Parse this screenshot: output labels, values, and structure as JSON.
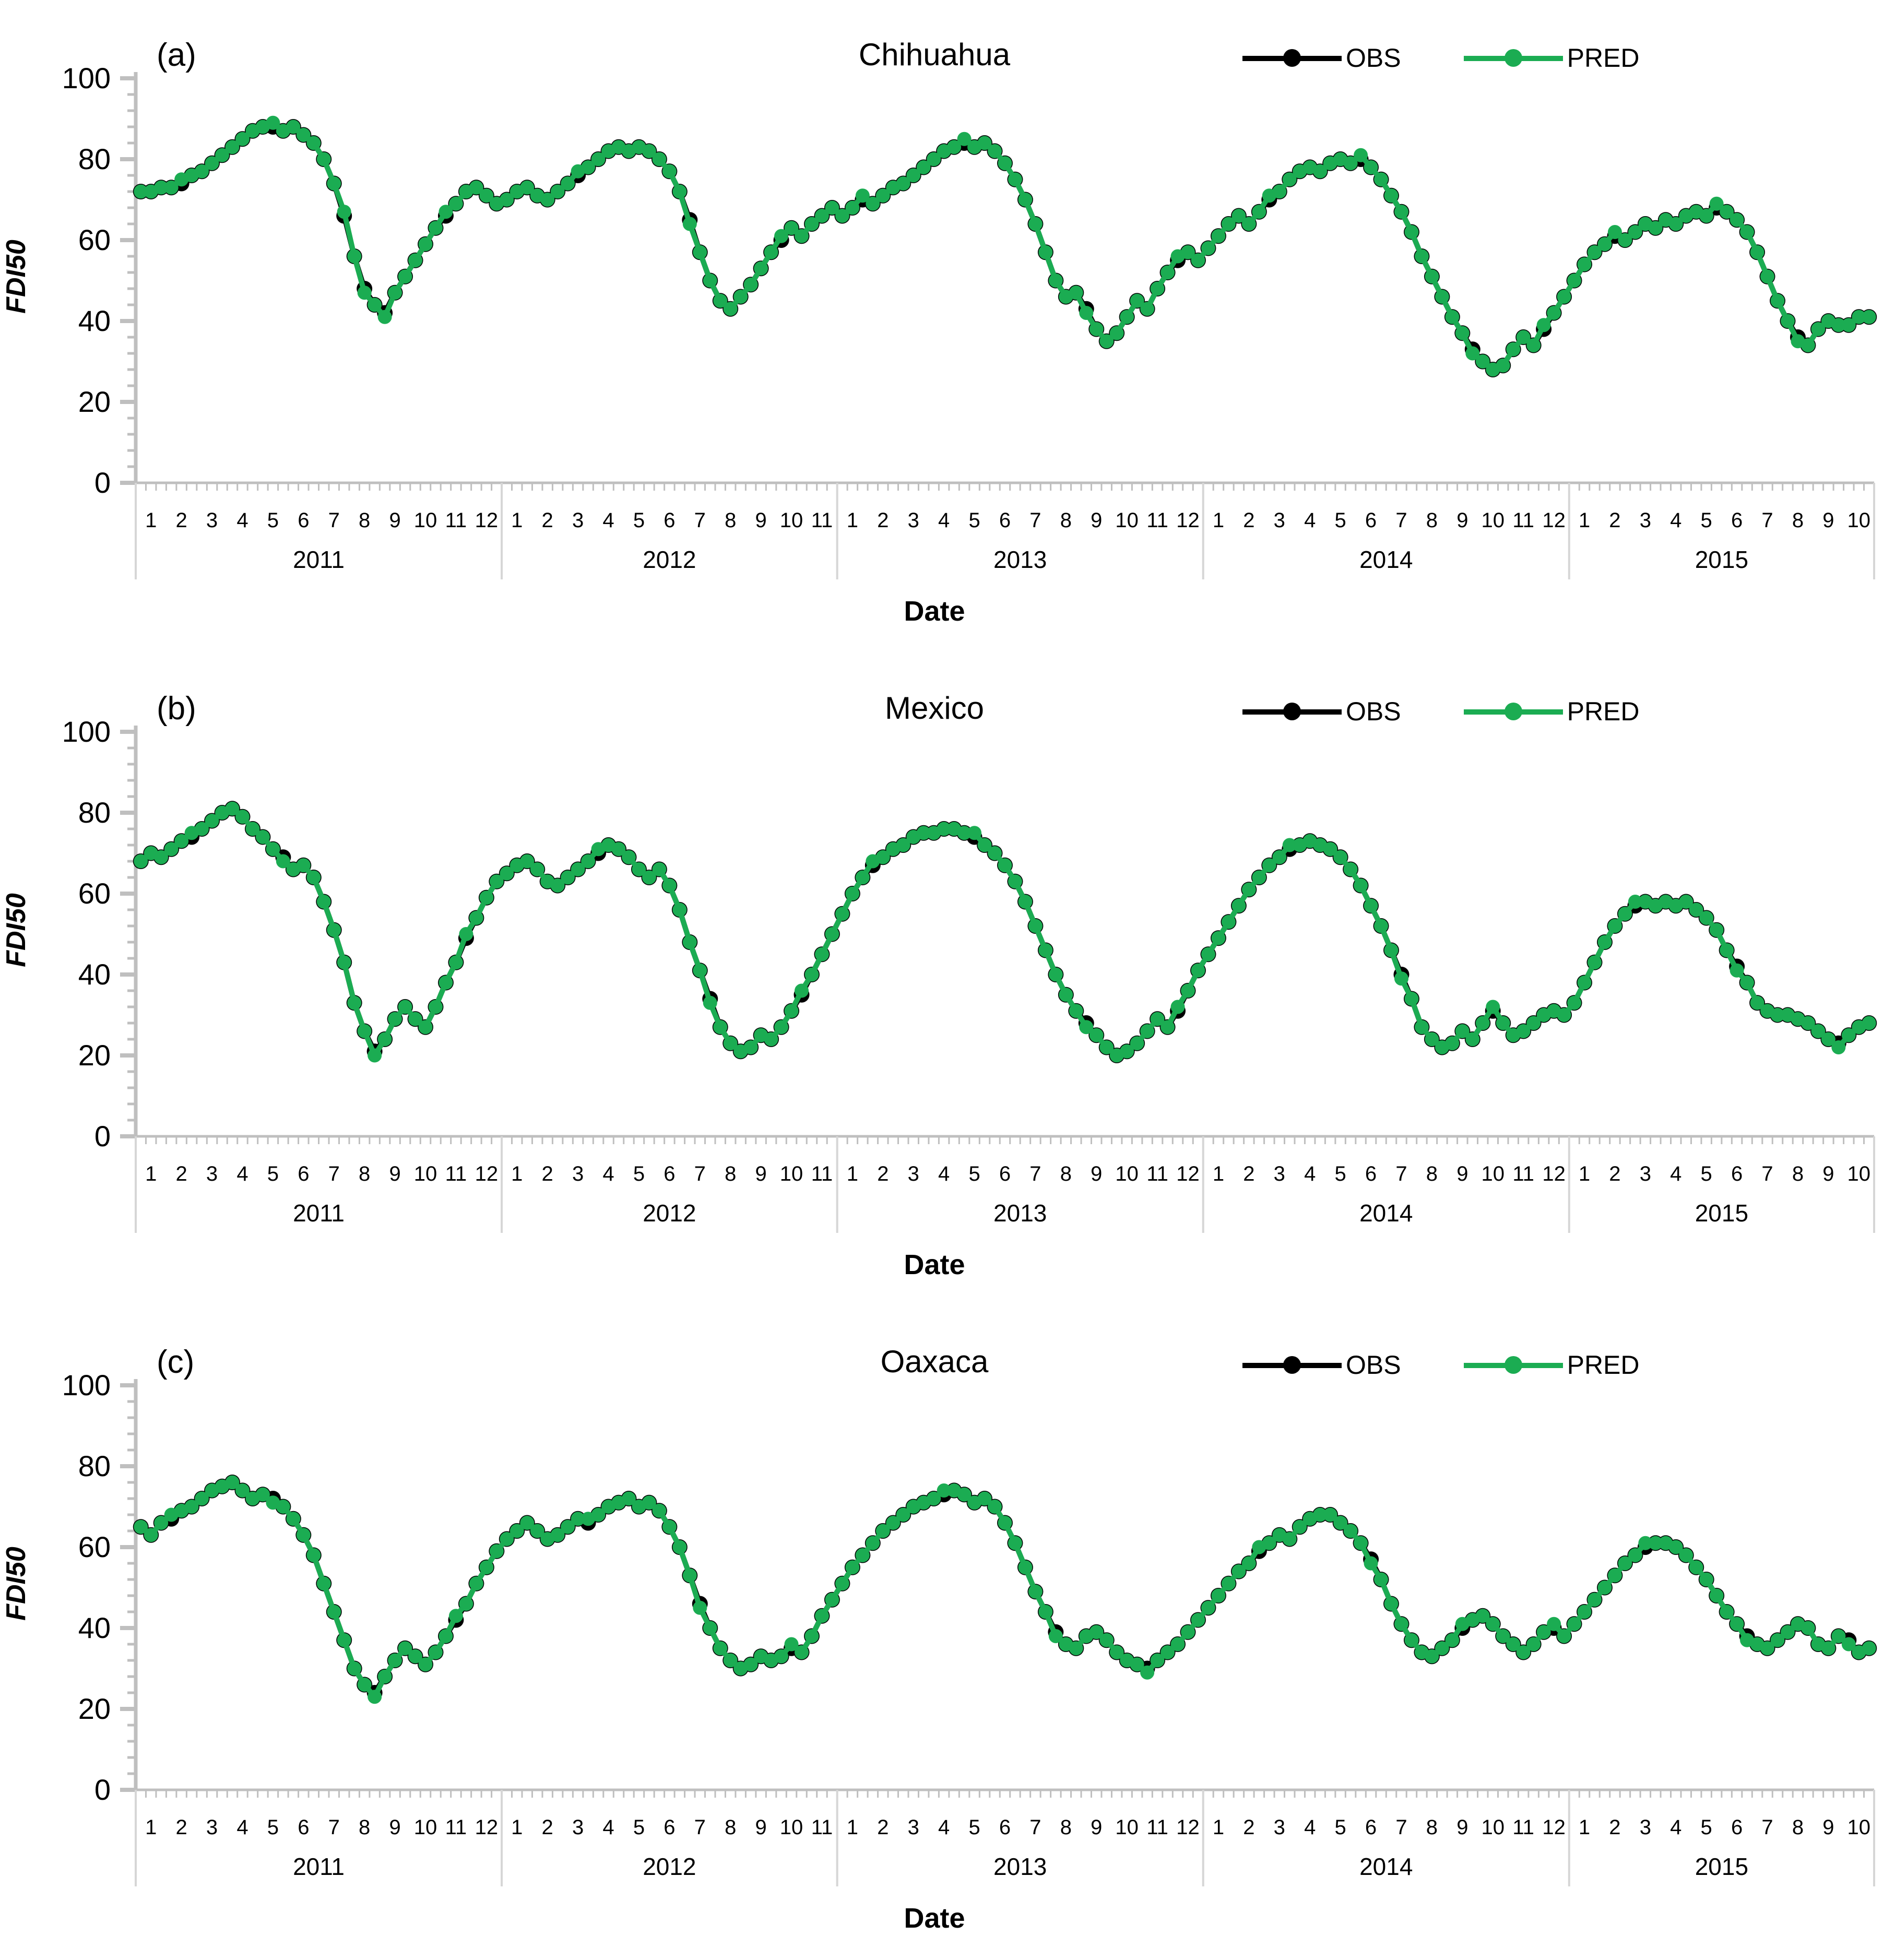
{
  "colors": {
    "obs": "#000000",
    "pred": "#1BAC52",
    "axis": "#BFBFBF",
    "separator": "#D6D6D6",
    "text": "#000000"
  },
  "legend": {
    "obs": "OBS",
    "pred": "PRED"
  },
  "y_axis": {
    "min": 0,
    "max": 100,
    "major_step": 20,
    "minor_step": 4,
    "tick_labels": [
      "0",
      "20",
      "40",
      "60",
      "80",
      "100"
    ]
  },
  "x_axis": {
    "years": [
      {
        "label": "2011",
        "months": [
          "1",
          "2",
          "3",
          "4",
          "5",
          "6",
          "7",
          "8",
          "9",
          "10",
          "11",
          "12"
        ]
      },
      {
        "label": "2012",
        "months": [
          "1",
          "2",
          "3",
          "4",
          "5",
          "6",
          "7",
          "8",
          "9",
          "10",
          "11"
        ]
      },
      {
        "label": "2013",
        "months": [
          "1",
          "2",
          "3",
          "4",
          "5",
          "6",
          "7",
          "8",
          "9",
          "10",
          "11",
          "12"
        ]
      },
      {
        "label": "2014",
        "months": [
          "1",
          "2",
          "3",
          "4",
          "5",
          "6",
          "7",
          "8",
          "9",
          "10",
          "11",
          "12"
        ]
      },
      {
        "label": "2015",
        "months": [
          "1",
          "2",
          "3",
          "4",
          "5",
          "6",
          "7",
          "8",
          "9",
          "10"
        ]
      }
    ]
  },
  "chart_data": [
    {
      "type": "line",
      "panel_label": "(a)",
      "title": "Chihuahua",
      "xlabel": "Date",
      "ylabel": "FDI50",
      "ylim": [
        0,
        100
      ],
      "x_span": "Jan 2011 - Oct 2015",
      "points_per_labeled_month": 3,
      "series": [
        {
          "name": "OBS",
          "color": "#000000",
          "values": [
            72,
            72,
            73,
            73,
            74,
            76,
            77,
            79,
            81,
            83,
            85,
            87,
            88,
            88,
            87,
            88,
            86,
            84,
            80,
            74,
            66,
            56,
            48,
            44,
            42,
            47,
            51,
            55,
            59,
            63,
            66,
            69,
            72,
            73,
            71,
            69,
            70,
            72,
            73,
            71,
            70,
            72,
            74,
            76,
            78,
            80,
            82,
            83,
            82,
            83,
            82,
            80,
            77,
            72,
            65,
            57,
            50,
            45,
            43,
            46,
            49,
            53,
            57,
            60,
            63,
            61,
            64,
            66,
            68,
            66,
            68,
            70,
            69,
            71,
            73,
            74,
            76,
            78,
            80,
            82,
            83,
            84,
            83,
            84,
            82,
            79,
            75,
            70,
            64,
            57,
            50,
            46,
            47,
            43,
            38,
            35,
            37,
            41,
            45,
            43,
            48,
            52,
            55,
            57,
            55,
            58,
            61,
            64,
            66,
            64,
            67,
            70,
            72,
            75,
            77,
            78,
            77,
            79,
            80,
            79,
            80,
            78,
            75,
            71,
            67,
            62,
            56,
            51,
            46,
            41,
            37,
            33,
            30,
            28,
            29,
            33,
            36,
            34,
            38,
            42,
            46,
            50,
            54,
            57,
            59,
            61,
            60,
            62,
            64,
            63,
            65,
            64,
            66,
            67,
            66,
            68,
            67,
            65,
            62,
            57,
            51,
            45,
            40,
            36,
            34,
            38,
            40,
            39,
            39,
            41,
            41
          ]
        },
        {
          "name": "PRED",
          "color": "#1BAC52",
          "values": [
            72,
            72,
            73,
            73,
            75,
            76,
            77,
            79,
            81,
            83,
            85,
            87,
            88,
            89,
            87,
            88,
            86,
            84,
            80,
            74,
            67,
            56,
            47,
            44,
            41,
            47,
            51,
            55,
            59,
            63,
            67,
            69,
            72,
            73,
            71,
            69,
            70,
            72,
            73,
            71,
            70,
            72,
            74,
            77,
            78,
            80,
            82,
            83,
            82,
            83,
            82,
            80,
            77,
            72,
            64,
            57,
            50,
            45,
            43,
            46,
            49,
            53,
            57,
            61,
            63,
            61,
            64,
            66,
            68,
            66,
            68,
            71,
            69,
            71,
            73,
            74,
            76,
            78,
            80,
            82,
            83,
            85,
            83,
            84,
            82,
            79,
            75,
            70,
            64,
            57,
            50,
            46,
            47,
            42,
            38,
            35,
            37,
            41,
            45,
            43,
            48,
            52,
            56,
            57,
            55,
            58,
            61,
            64,
            66,
            64,
            67,
            71,
            72,
            75,
            77,
            78,
            77,
            79,
            80,
            79,
            81,
            78,
            75,
            71,
            67,
            62,
            56,
            51,
            46,
            41,
            37,
            32,
            30,
            28,
            29,
            33,
            36,
            34,
            39,
            42,
            46,
            50,
            54,
            57,
            59,
            62,
            60,
            62,
            64,
            63,
            65,
            64,
            66,
            67,
            66,
            69,
            67,
            65,
            62,
            57,
            51,
            45,
            40,
            35,
            34,
            38,
            40,
            39,
            39,
            41,
            41
          ]
        }
      ]
    },
    {
      "type": "line",
      "panel_label": "(b)",
      "title": "Mexico",
      "xlabel": "Date",
      "ylabel": "FDI50",
      "ylim": [
        0,
        100
      ],
      "x_span": "Jan 2011 - Oct 2015",
      "points_per_labeled_month": 3,
      "series": [
        {
          "name": "OBS",
          "color": "#000000",
          "values": [
            68,
            70,
            69,
            71,
            73,
            74,
            76,
            78,
            80,
            81,
            79,
            76,
            74,
            71,
            69,
            66,
            67,
            64,
            58,
            51,
            43,
            33,
            26,
            21,
            24,
            29,
            32,
            29,
            27,
            32,
            38,
            43,
            49,
            54,
            59,
            63,
            65,
            67,
            68,
            66,
            63,
            62,
            64,
            66,
            68,
            70,
            72,
            71,
            69,
            66,
            64,
            66,
            62,
            56,
            48,
            41,
            34,
            27,
            23,
            21,
            22,
            25,
            24,
            27,
            31,
            35,
            40,
            45,
            50,
            55,
            60,
            64,
            67,
            69,
            71,
            72,
            74,
            75,
            75,
            76,
            76,
            75,
            74,
            72,
            70,
            67,
            63,
            58,
            52,
            46,
            40,
            35,
            31,
            28,
            25,
            22,
            20,
            21,
            23,
            26,
            29,
            27,
            31,
            36,
            41,
            45,
            49,
            53,
            57,
            61,
            64,
            67,
            69,
            71,
            72,
            73,
            72,
            71,
            69,
            66,
            62,
            57,
            52,
            46,
            40,
            34,
            27,
            24,
            22,
            23,
            26,
            24,
            28,
            31,
            28,
            25,
            26,
            28,
            30,
            31,
            30,
            33,
            38,
            43,
            48,
            52,
            55,
            57,
            58,
            57,
            58,
            57,
            58,
            56,
            54,
            51,
            46,
            42,
            38,
            33,
            31,
            30,
            30,
            29,
            28,
            26,
            24,
            23,
            25,
            27,
            28
          ]
        },
        {
          "name": "PRED",
          "color": "#1BAC52",
          "values": [
            68,
            70,
            69,
            71,
            73,
            75,
            76,
            78,
            80,
            81,
            79,
            76,
            74,
            71,
            68,
            66,
            67,
            64,
            58,
            51,
            43,
            33,
            26,
            20,
            24,
            29,
            32,
            29,
            27,
            32,
            38,
            43,
            50,
            54,
            59,
            63,
            65,
            67,
            68,
            66,
            63,
            62,
            64,
            66,
            68,
            71,
            72,
            71,
            69,
            66,
            64,
            66,
            62,
            56,
            48,
            41,
            33,
            27,
            23,
            21,
            22,
            25,
            24,
            27,
            31,
            36,
            40,
            45,
            50,
            55,
            60,
            64,
            68,
            69,
            71,
            72,
            74,
            75,
            75,
            76,
            76,
            75,
            75,
            72,
            70,
            67,
            63,
            58,
            52,
            46,
            40,
            35,
            31,
            27,
            25,
            22,
            20,
            21,
            23,
            26,
            29,
            27,
            32,
            36,
            41,
            45,
            49,
            53,
            57,
            61,
            64,
            67,
            69,
            72,
            72,
            73,
            72,
            71,
            69,
            66,
            62,
            57,
            52,
            46,
            39,
            34,
            27,
            24,
            22,
            23,
            26,
            24,
            28,
            32,
            28,
            25,
            26,
            28,
            30,
            31,
            30,
            33,
            38,
            43,
            48,
            52,
            55,
            58,
            58,
            57,
            58,
            57,
            58,
            56,
            54,
            51,
            46,
            41,
            38,
            33,
            31,
            30,
            30,
            29,
            28,
            26,
            24,
            22,
            25,
            27,
            28
          ]
        }
      ]
    },
    {
      "type": "line",
      "panel_label": "(c)",
      "title": "Oaxaca",
      "xlabel": "Date",
      "ylabel": "FDI50",
      "ylim": [
        0,
        100
      ],
      "x_span": "Jan 2011 - Oct 2015",
      "points_per_labeled_month": 3,
      "series": [
        {
          "name": "OBS",
          "color": "#000000",
          "values": [
            65,
            63,
            66,
            67,
            69,
            70,
            72,
            74,
            75,
            76,
            74,
            72,
            73,
            72,
            70,
            67,
            63,
            58,
            51,
            44,
            37,
            30,
            26,
            24,
            28,
            32,
            35,
            33,
            31,
            34,
            38,
            42,
            46,
            51,
            55,
            59,
            62,
            64,
            66,
            64,
            62,
            63,
            65,
            67,
            66,
            68,
            70,
            71,
            72,
            70,
            71,
            69,
            65,
            60,
            53,
            46,
            40,
            35,
            32,
            30,
            31,
            33,
            32,
            33,
            35,
            34,
            38,
            43,
            47,
            51,
            55,
            58,
            61,
            64,
            66,
            68,
            70,
            71,
            72,
            73,
            74,
            73,
            71,
            72,
            70,
            66,
            61,
            55,
            49,
            44,
            39,
            36,
            35,
            38,
            39,
            37,
            34,
            32,
            31,
            30,
            32,
            34,
            36,
            39,
            42,
            45,
            48,
            51,
            54,
            56,
            59,
            61,
            63,
            62,
            65,
            67,
            68,
            68,
            66,
            64,
            61,
            57,
            52,
            46,
            41,
            37,
            34,
            33,
            35,
            37,
            40,
            42,
            43,
            41,
            38,
            36,
            34,
            36,
            39,
            40,
            38,
            41,
            44,
            47,
            50,
            53,
            56,
            58,
            60,
            61,
            61,
            60,
            58,
            55,
            52,
            48,
            44,
            41,
            38,
            36,
            35,
            37,
            39,
            41,
            40,
            36,
            35,
            38,
            37,
            34,
            35
          ]
        },
        {
          "name": "PRED",
          "color": "#1BAC52",
          "values": [
            65,
            63,
            66,
            68,
            69,
            70,
            72,
            74,
            75,
            76,
            74,
            72,
            73,
            71,
            70,
            67,
            63,
            58,
            51,
            44,
            37,
            30,
            26,
            23,
            28,
            32,
            35,
            33,
            31,
            34,
            38,
            43,
            46,
            51,
            55,
            59,
            62,
            64,
            66,
            64,
            62,
            63,
            65,
            67,
            67,
            68,
            70,
            71,
            72,
            70,
            71,
            69,
            65,
            60,
            53,
            45,
            40,
            35,
            32,
            30,
            31,
            33,
            32,
            33,
            36,
            34,
            38,
            43,
            47,
            51,
            55,
            58,
            61,
            64,
            66,
            68,
            70,
            71,
            72,
            74,
            74,
            73,
            71,
            72,
            70,
            66,
            61,
            55,
            49,
            44,
            38,
            36,
            35,
            38,
            39,
            37,
            34,
            32,
            31,
            29,
            32,
            34,
            36,
            39,
            42,
            45,
            48,
            51,
            54,
            56,
            60,
            61,
            63,
            62,
            65,
            67,
            68,
            68,
            66,
            64,
            61,
            56,
            52,
            46,
            41,
            37,
            34,
            33,
            35,
            37,
            41,
            42,
            43,
            41,
            38,
            36,
            34,
            36,
            39,
            41,
            38,
            41,
            44,
            47,
            50,
            53,
            56,
            58,
            61,
            61,
            61,
            60,
            58,
            55,
            52,
            48,
            44,
            41,
            37,
            36,
            35,
            37,
            39,
            41,
            40,
            36,
            35,
            38,
            36,
            34,
            35
          ]
        }
      ]
    }
  ]
}
